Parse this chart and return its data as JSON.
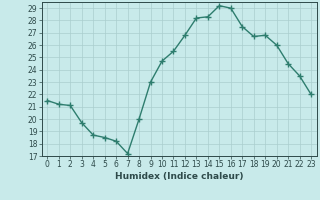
{
  "x": [
    0,
    1,
    2,
    3,
    4,
    5,
    6,
    7,
    8,
    9,
    10,
    11,
    12,
    13,
    14,
    15,
    16,
    17,
    18,
    19,
    20,
    21,
    22,
    23
  ],
  "y": [
    21.5,
    21.2,
    21.1,
    19.7,
    18.7,
    18.5,
    18.2,
    17.2,
    20.0,
    23.0,
    24.7,
    25.5,
    26.8,
    28.2,
    28.3,
    29.2,
    29.0,
    27.5,
    26.7,
    26.8,
    26.0,
    24.5,
    23.5,
    22.0
  ],
  "line_color": "#2e7d6e",
  "marker": "+",
  "marker_size": 4,
  "bg_color": "#c8eaea",
  "grid_color": "#aacece",
  "xlabel": "Humidex (Indice chaleur)",
  "ylim": [
    17,
    29.5
  ],
  "yticks": [
    17,
    18,
    19,
    20,
    21,
    22,
    23,
    24,
    25,
    26,
    27,
    28,
    29
  ],
  "xticks": [
    0,
    1,
    2,
    3,
    4,
    5,
    6,
    7,
    8,
    9,
    10,
    11,
    12,
    13,
    14,
    15,
    16,
    17,
    18,
    19,
    20,
    21,
    22,
    23
  ],
  "axis_fontsize": 6.5,
  "tick_fontsize": 5.5,
  "line_width": 1.0,
  "marker_color": "#2e7d6e"
}
